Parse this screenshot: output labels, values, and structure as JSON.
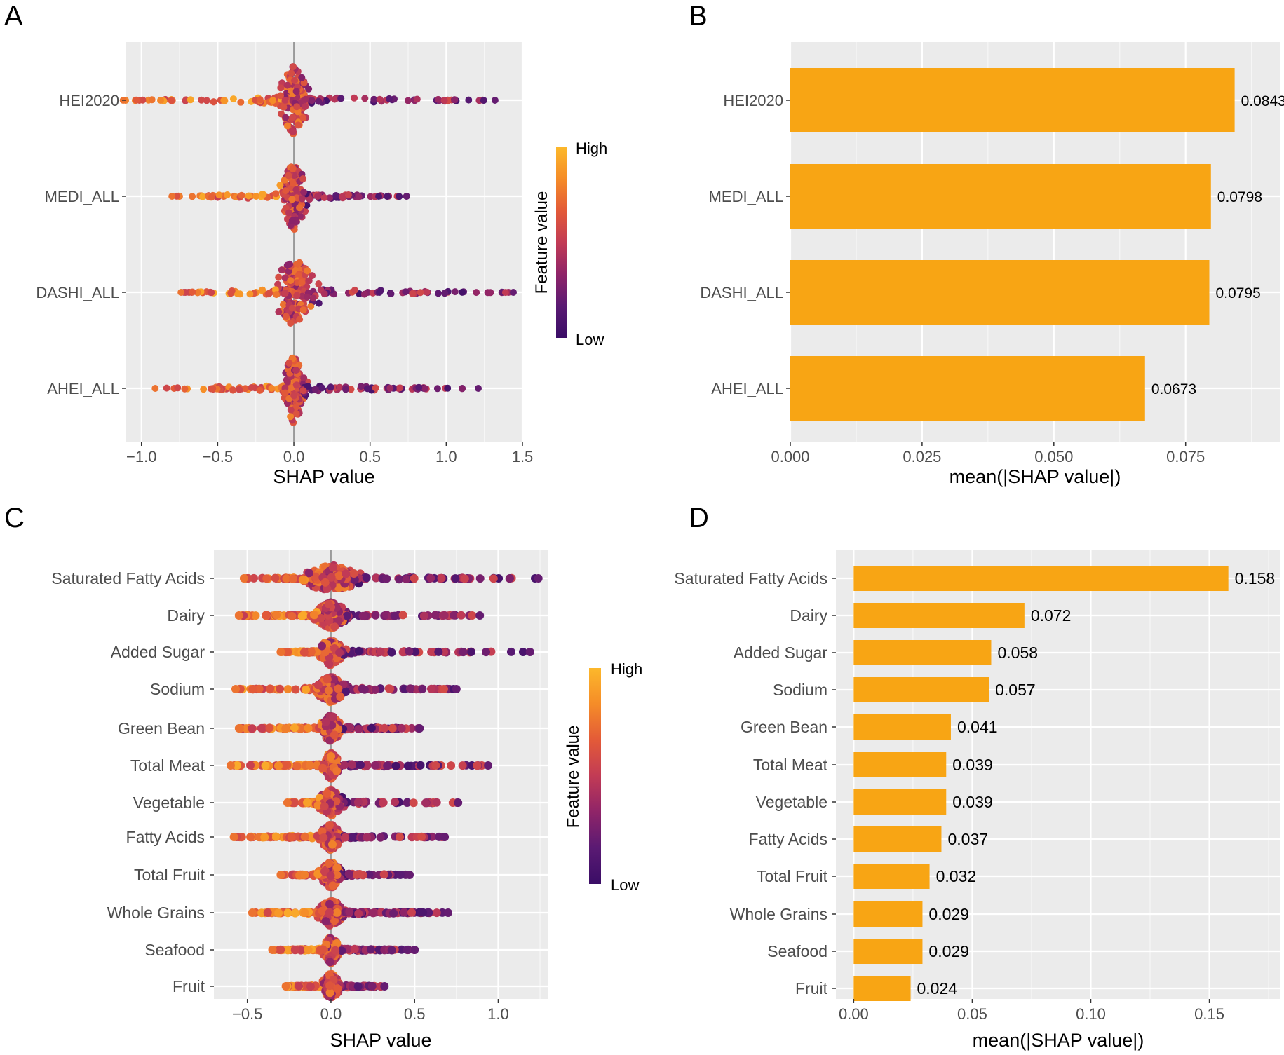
{
  "panels": {
    "A": "A",
    "B": "B",
    "C": "C",
    "D": "D"
  },
  "legend": {
    "title": "Feature value",
    "high": "High",
    "low": "Low",
    "colors": [
      "#fcb82b",
      "#f58c28",
      "#e35a38",
      "#c23b55",
      "#8f2468",
      "#5a1a73",
      "#3a0d66"
    ]
  },
  "chart_data": [
    {
      "id": "A",
      "type": "scatter",
      "subtype": "shap-beeswarm",
      "xlabel": "SHAP value",
      "xlim": [
        -1.1,
        1.5
      ],
      "xticks": [
        -1.0,
        -0.5,
        0.0,
        0.5,
        1.0,
        1.5
      ],
      "xtick_labels": [
        "−1.0",
        "−0.5",
        "0.0",
        "0.5",
        "1.0",
        "1.5"
      ],
      "features": [
        {
          "name": "HEI2020",
          "range": [
            -1.12,
            1.32
          ],
          "width": 0.55,
          "core": 0.08,
          "seed": 11
        },
        {
          "name": "MEDI_ALL",
          "range": [
            -0.8,
            0.74
          ],
          "width": 0.48,
          "core": 0.07,
          "seed": 23
        },
        {
          "name": "DASHI_ALL",
          "range": [
            -0.74,
            1.44
          ],
          "width": 0.5,
          "core": 0.12,
          "seed": 37
        },
        {
          "name": "AHEI_ALL",
          "range": [
            -0.91,
            1.21
          ],
          "width": 0.55,
          "core": 0.06,
          "seed": 41
        }
      ]
    },
    {
      "id": "B",
      "type": "bar",
      "orientation": "horizontal",
      "xlabel": "mean(|SHAP value|)",
      "xlim": [
        0,
        0.093
      ],
      "xticks": [
        0.0,
        0.025,
        0.05,
        0.075
      ],
      "xtick_labels": [
        "0.000",
        "0.025",
        "0.050",
        "0.075"
      ],
      "categories": [
        "HEI2020",
        "MEDI_ALL",
        "DASHI_ALL",
        "AHEI_ALL"
      ],
      "values": [
        0.0843,
        0.0798,
        0.0795,
        0.0673
      ],
      "value_labels": [
        "0.0843",
        "0.0798",
        "0.0795",
        "0.0673"
      ],
      "color": "#f8a514"
    },
    {
      "id": "C",
      "type": "scatter",
      "subtype": "shap-beeswarm",
      "xlabel": "SHAP value",
      "xlim": [
        -0.7,
        1.3
      ],
      "xticks": [
        -0.5,
        0.0,
        0.5,
        1.0
      ],
      "xtick_labels": [
        "−0.5",
        "0.0",
        "0.5",
        "1.0"
      ],
      "features": [
        {
          "name": "Saturated Fatty Acids",
          "range": [
            -0.52,
            1.24
          ],
          "width": 0.6,
          "core": 0.14,
          "seed": 5
        },
        {
          "name": "Dairy",
          "range": [
            -0.55,
            0.89
          ],
          "width": 0.45,
          "core": 0.08,
          "seed": 7
        },
        {
          "name": "Added Sugar",
          "range": [
            -0.3,
            1.19
          ],
          "width": 0.55,
          "core": 0.06,
          "seed": 13
        },
        {
          "name": "Sodium",
          "range": [
            -0.57,
            0.75
          ],
          "width": 0.45,
          "core": 0.07,
          "seed": 17
        },
        {
          "name": "Green Bean",
          "range": [
            -0.55,
            0.53
          ],
          "width": 0.45,
          "core": 0.05,
          "seed": 19
        },
        {
          "name": "Total Meat",
          "range": [
            -0.6,
            0.94
          ],
          "width": 0.35,
          "core": 0.04,
          "seed": 29
        },
        {
          "name": "Vegetable",
          "range": [
            -0.26,
            0.76
          ],
          "width": 0.5,
          "core": 0.06,
          "seed": 31
        },
        {
          "name": "Fatty Acids",
          "range": [
            -0.58,
            0.68
          ],
          "width": 0.4,
          "core": 0.05,
          "seed": 43
        },
        {
          "name": "Total Fruit",
          "range": [
            -0.3,
            0.47
          ],
          "width": 0.45,
          "core": 0.05,
          "seed": 47
        },
        {
          "name": "Whole Grains",
          "range": [
            -0.47,
            0.7
          ],
          "width": 0.45,
          "core": 0.06,
          "seed": 53
        },
        {
          "name": "Seafood",
          "range": [
            -0.35,
            0.5
          ],
          "width": 0.45,
          "core": 0.04,
          "seed": 59
        },
        {
          "name": "Fruit",
          "range": [
            -0.27,
            0.32
          ],
          "width": 0.4,
          "core": 0.04,
          "seed": 61
        }
      ]
    },
    {
      "id": "D",
      "type": "bar",
      "orientation": "horizontal",
      "xlabel": "mean(|SHAP value|)",
      "xlim": [
        -0.0075,
        0.18
      ],
      "xticks": [
        0.0,
        0.05,
        0.1,
        0.15
      ],
      "xtick_labels": [
        "0.00",
        "0.05",
        "0.10",
        "0.15"
      ],
      "categories": [
        "Saturated Fatty Acids",
        "Dairy",
        "Added Sugar",
        "Sodium",
        "Green Bean",
        "Total Meat",
        "Vegetable",
        "Fatty Acids",
        "Total Fruit",
        "Whole Grains",
        "Seafood",
        "Fruit"
      ],
      "values": [
        0.158,
        0.072,
        0.058,
        0.057,
        0.041,
        0.039,
        0.039,
        0.037,
        0.032,
        0.029,
        0.029,
        0.024
      ],
      "value_labels": [
        "0.158",
        "0.072",
        "0.058",
        "0.057",
        "0.041",
        "0.039",
        "0.039",
        "0.037",
        "0.032",
        "0.029",
        "0.029",
        "0.024"
      ],
      "color": "#f8a514"
    }
  ]
}
